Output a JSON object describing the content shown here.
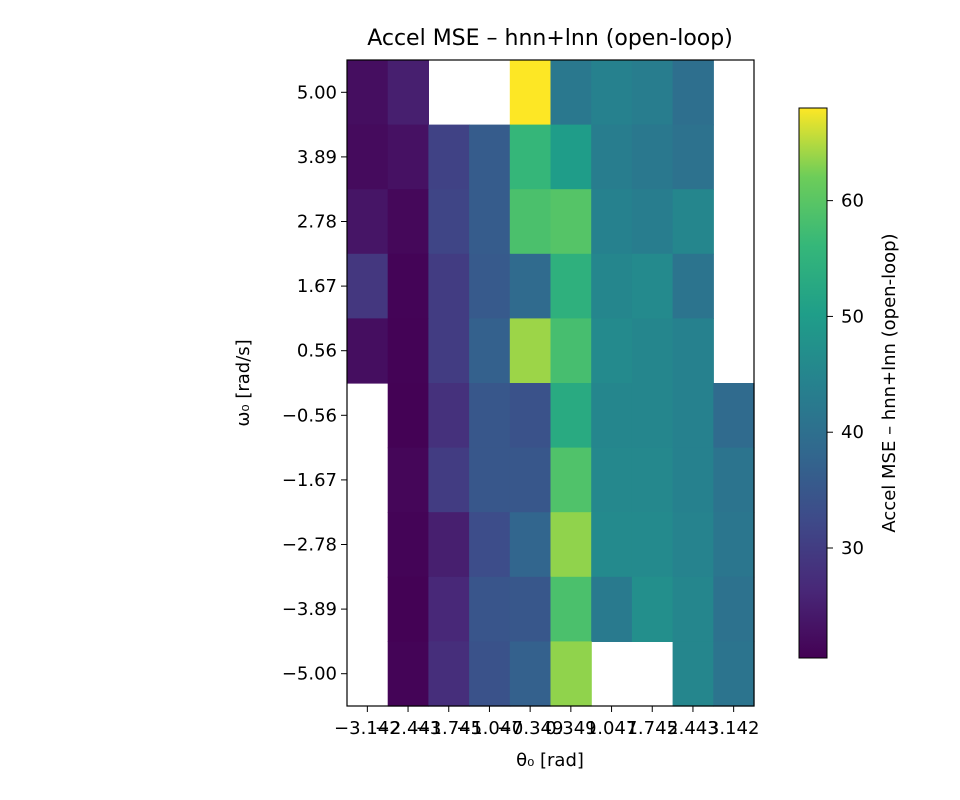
{
  "chart_data": {
    "type": "heatmap",
    "title": "Accel MSE – hnn+lnn (open-loop)",
    "xlabel": "θ₀ [rad]",
    "ylabel": "ω₀ [rad/s]",
    "colorbar_label": "Accel MSE – hnn+lnn (open-loop)",
    "colormap": "viridis",
    "vmin": 20.5,
    "vmax": 68.0,
    "colorbar_ticks": [
      30,
      40,
      50,
      60
    ],
    "x_tick_labels": [
      "−3.142",
      "−2.443",
      "−1.745",
      "−1.047",
      "−0.349",
      "0.349",
      "1.047",
      "1.745",
      "2.443",
      "3.142"
    ],
    "y_tick_labels": [
      "5.00",
      "3.89",
      "2.78",
      "1.67",
      "0.56",
      "−0.56",
      "−1.67",
      "−2.78",
      "−3.89",
      "−5.00"
    ],
    "x": [
      -3.142,
      -2.443,
      -1.745,
      -1.047,
      -0.349,
      0.349,
      1.047,
      1.745,
      2.443,
      3.142
    ],
    "y": [
      5.0,
      3.89,
      2.78,
      1.67,
      0.56,
      -0.56,
      -1.67,
      -2.78,
      -3.89,
      -5.0
    ],
    "values": [
      [
        22.5,
        25.0,
        null,
        null,
        68.0,
        42.0,
        44.0,
        43.0,
        40.0,
        null
      ],
      [
        22.0,
        23.0,
        31.0,
        36.0,
        56.0,
        50.0,
        43.0,
        42.0,
        40.5,
        null
      ],
      [
        23.5,
        21.5,
        31.5,
        36.0,
        58.5,
        59.5,
        44.0,
        43.0,
        45.0,
        null
      ],
      [
        29.0,
        21.0,
        30.0,
        35.5,
        39.0,
        54.5,
        45.0,
        46.0,
        41.0,
        null
      ],
      [
        22.5,
        20.8,
        30.0,
        37.0,
        64.0,
        58.0,
        46.0,
        45.0,
        44.0,
        null
      ],
      [
        null,
        20.7,
        28.0,
        35.0,
        34.0,
        53.0,
        45.0,
        45.0,
        44.0,
        39.0
      ],
      [
        null,
        21.3,
        30.0,
        35.0,
        35.0,
        59.0,
        45.5,
        45.5,
        44.0,
        41.0
      ],
      [
        null,
        21.0,
        25.0,
        33.0,
        38.0,
        63.5,
        46.0,
        46.0,
        44.5,
        41.5
      ],
      [
        null,
        20.7,
        26.5,
        34.5,
        35.0,
        58.5,
        42.5,
        47.0,
        45.0,
        40.5
      ],
      [
        null,
        21.0,
        27.5,
        34.0,
        37.0,
        63.5,
        null,
        null,
        45.0,
        41.0
      ]
    ]
  }
}
